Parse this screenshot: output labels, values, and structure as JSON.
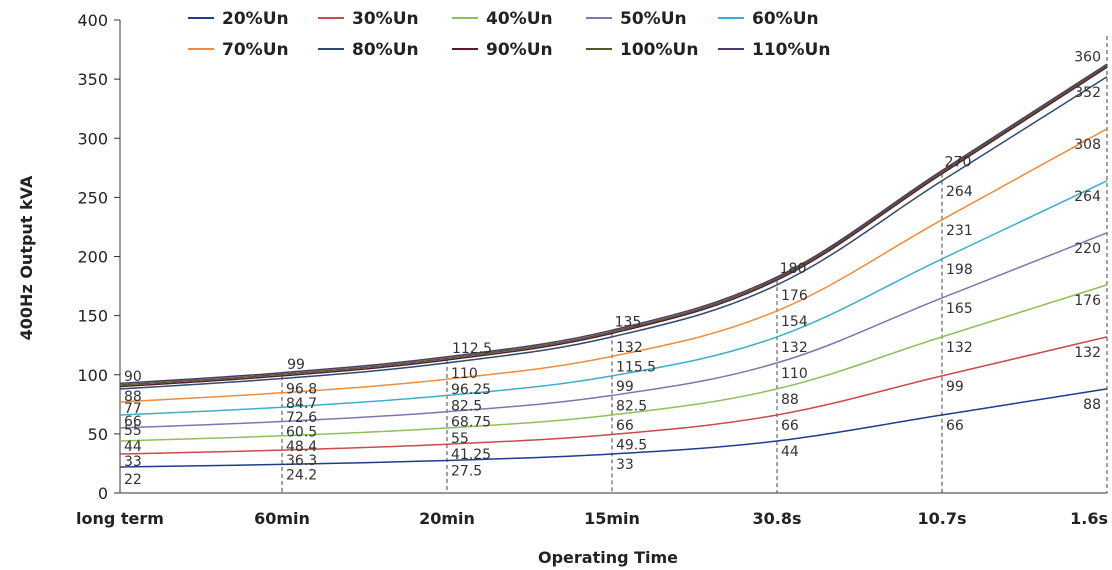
{
  "chart_data": {
    "type": "line",
    "xlabel": "Operating Time",
    "ylabel": "400Hz Output  kVA",
    "categories": [
      "long term",
      "60min",
      "20min",
      "15min",
      "30.8s",
      "10.7s",
      "1.6s"
    ],
    "ylim": [
      0,
      400
    ],
    "yticks": [
      0,
      50,
      100,
      150,
      200,
      250,
      300,
      350,
      400
    ],
    "grid": false,
    "legend_position": "top",
    "series": [
      {
        "name": "20%Un",
        "color": "#1f3d8c",
        "values": [
          22,
          24.2,
          27.5,
          33,
          44,
          66,
          88
        ]
      },
      {
        "name": "30%Un",
        "color": "#cc4a4a",
        "values": [
          33,
          36.3,
          41.25,
          49.5,
          66,
          99,
          132
        ]
      },
      {
        "name": "40%Un",
        "color": "#8fbf5a",
        "values": [
          44,
          48.4,
          55,
          66,
          88,
          132,
          176
        ]
      },
      {
        "name": "50%Un",
        "color": "#8273b5",
        "values": [
          55,
          60.5,
          68.75,
          82.5,
          110,
          165,
          220
        ]
      },
      {
        "name": "60%Un",
        "color": "#3daed0",
        "values": [
          66,
          72.6,
          82.5,
          99,
          132,
          198,
          264
        ]
      },
      {
        "name": "70%Un",
        "color": "#f28b3c",
        "values": [
          77,
          84.7,
          96.25,
          115.5,
          154,
          231,
          308
        ]
      },
      {
        "name": "80%Un",
        "color": "#2e4a6e",
        "values": [
          88,
          96.8,
          110,
          132,
          176,
          264,
          352
        ]
      },
      {
        "name": "90%Un",
        "color": "#5a1a2e",
        "values": [
          90,
          99,
          112.5,
          135,
          180,
          270,
          360
        ]
      },
      {
        "name": "100%Un",
        "color": "#4f5a2a",
        "values": [
          90,
          99,
          112.5,
          135,
          180,
          270,
          360
        ]
      },
      {
        "name": "110%Un",
        "color": "#4e3a6b",
        "values": [
          90,
          99,
          112.5,
          135,
          180,
          270,
          360
        ]
      }
    ],
    "data_labels": [
      [
        "22",
        "33",
        "44",
        "55",
        "66",
        "77",
        "88",
        "90"
      ],
      [
        "24.2",
        "36.3",
        "48.4",
        "60.5",
        "72.6",
        "84.7",
        "96.8",
        "99"
      ],
      [
        "27.5",
        "41.25",
        "55",
        "68.75",
        "82.5",
        "96.25",
        "110",
        "112.5"
      ],
      [
        "33",
        "49.5",
        "66",
        "82.5",
        "99",
        "115.5",
        "132",
        "135"
      ],
      [
        "44",
        "66",
        "88",
        "110",
        "132",
        "154",
        "176",
        "180"
      ],
      [
        "66",
        "99",
        "132",
        "165",
        "198",
        "231",
        "264",
        "270"
      ],
      [
        "88",
        "132",
        "176",
        "220",
        "264",
        "308",
        "352",
        "360"
      ]
    ]
  }
}
